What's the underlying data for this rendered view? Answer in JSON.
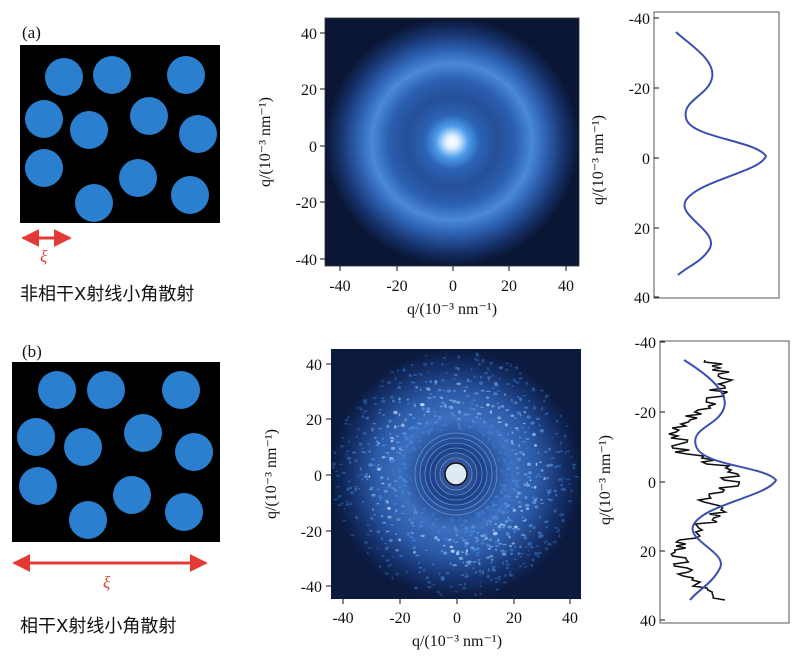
{
  "panel_a": {
    "label": "(a)",
    "caption": "非相干X射线小角散射",
    "xi_symbol": "ξ",
    "pattern_axis": {
      "xlabel": "q/(10⁻³ nm⁻¹)",
      "ylabel": "q/(10⁻³ nm⁻¹)",
      "x_ticks": [
        "-40",
        "-20",
        "0",
        "20",
        "40"
      ],
      "y_ticks": [
        "40",
        "20",
        "0",
        "-20",
        "-40"
      ]
    },
    "profile_axis": {
      "ylabel": "q/(10⁻³ nm⁻¹)",
      "ticks": [
        "-40",
        "-20",
        "0",
        "20",
        "40"
      ]
    }
  },
  "panel_b": {
    "label": "(b)",
    "caption": "相干X射线小角散射",
    "xi_symbol": "ξ",
    "pattern_axis": {
      "xlabel": "q/(10⁻³ nm⁻¹)",
      "ylabel": "q/(10⁻³ nm⁻¹)",
      "x_ticks": [
        "-40",
        "-20",
        "0",
        "20",
        "40"
      ],
      "y_ticks": [
        "40",
        "20",
        "0",
        "-20",
        "-40"
      ]
    },
    "profile_axis": {
      "ylabel": "q/(10⁻³ nm⁻¹)",
      "ticks": [
        "-40",
        "-20",
        "0",
        "20",
        "40"
      ]
    }
  },
  "colors": {
    "particle": "#2a7fcf",
    "background": "#000000",
    "arrow": "#e53935",
    "incoherent_curve": "#3a4fb0",
    "coherent_curve": "#111111"
  }
}
